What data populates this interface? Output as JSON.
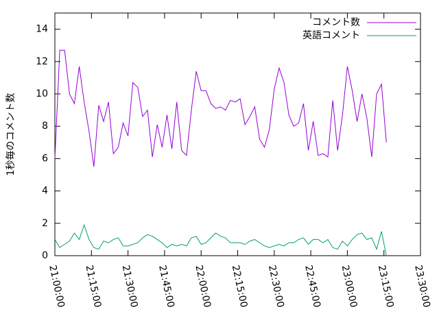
{
  "chart_data": {
    "type": "line",
    "ylabel": "1秒毎のコメント数",
    "x": [
      "21:00:00",
      "21:02:00",
      "21:04:00",
      "21:06:00",
      "21:08:00",
      "21:10:00",
      "21:12:00",
      "21:14:00",
      "21:16:00",
      "21:18:00",
      "21:20:00",
      "21:22:00",
      "21:24:00",
      "21:26:00",
      "21:28:00",
      "21:30:00",
      "21:32:00",
      "21:34:00",
      "21:36:00",
      "21:38:00",
      "21:40:00",
      "21:42:00",
      "21:44:00",
      "21:46:00",
      "21:48:00",
      "21:50:00",
      "21:52:00",
      "21:54:00",
      "21:56:00",
      "21:58:00",
      "22:00:00",
      "22:02:00",
      "22:04:00",
      "22:06:00",
      "22:08:00",
      "22:10:00",
      "22:12:00",
      "22:14:00",
      "22:16:00",
      "22:18:00",
      "22:20:00",
      "22:22:00",
      "22:24:00",
      "22:26:00",
      "22:28:00",
      "22:30:00",
      "22:32:00",
      "22:34:00",
      "22:36:00",
      "22:38:00",
      "22:40:00",
      "22:42:00",
      "22:44:00",
      "22:46:00",
      "22:48:00",
      "22:50:00",
      "22:52:00",
      "22:54:00",
      "22:56:00",
      "22:58:00",
      "23:00:00",
      "23:02:00",
      "23:04:00",
      "23:06:00",
      "23:08:00",
      "23:10:00",
      "23:12:00",
      "23:14:00",
      "23:16:00"
    ],
    "series": [
      {
        "name": "コメント数",
        "color": "#9400d3",
        "values": [
          6.0,
          12.7,
          12.7,
          10.0,
          9.4,
          11.7,
          9.5,
          7.7,
          5.5,
          9.3,
          8.3,
          9.5,
          6.3,
          6.7,
          8.2,
          7.4,
          10.7,
          10.4,
          8.6,
          9.0,
          6.1,
          8.1,
          6.7,
          8.7,
          6.6,
          9.5,
          6.5,
          6.2,
          9.0,
          11.4,
          10.2,
          10.2,
          9.4,
          9.1,
          9.2,
          9.0,
          9.6,
          9.5,
          9.7,
          8.1,
          8.6,
          9.2,
          7.2,
          6.7,
          7.8,
          10.3,
          11.6,
          10.7,
          8.7,
          8.0,
          8.2,
          9.4,
          6.5,
          8.3,
          6.2,
          6.3,
          6.1,
          9.6,
          6.5,
          8.7,
          11.7,
          10.2,
          8.3,
          10.0,
          8.5,
          6.1,
          10.0,
          10.6,
          7.0
        ]
      },
      {
        "name": "英語コメント",
        "color": "#009e73",
        "values": [
          1.0,
          0.5,
          0.7,
          0.9,
          1.4,
          1.0,
          1.9,
          1.0,
          0.5,
          0.4,
          0.9,
          0.8,
          1.0,
          1.1,
          0.6,
          0.6,
          0.7,
          0.8,
          1.1,
          1.3,
          1.2,
          1.0,
          0.8,
          0.5,
          0.7,
          0.6,
          0.7,
          0.6,
          1.1,
          1.2,
          0.7,
          0.8,
          1.1,
          1.4,
          1.2,
          1.1,
          0.8,
          0.8,
          0.8,
          0.7,
          0.9,
          1.0,
          0.8,
          0.6,
          0.5,
          0.6,
          0.7,
          0.6,
          0.8,
          0.8,
          1.0,
          1.1,
          0.7,
          1.0,
          1.0,
          0.8,
          1.0,
          0.5,
          0.4,
          0.9,
          0.6,
          1.0,
          1.3,
          1.4,
          1.0,
          1.1,
          0.4,
          1.5,
          0.0
        ]
      }
    ],
    "xlim": [
      "21:00:00",
      "23:30:00"
    ],
    "xticks": [
      "21:00:00",
      "21:15:00",
      "21:30:00",
      "21:45:00",
      "22:00:00",
      "22:15:00",
      "22:30:00",
      "22:45:00",
      "23:00:00",
      "23:15:00",
      "23:30:00"
    ],
    "ylim": [
      0,
      15
    ],
    "yticks": [
      0,
      2,
      4,
      6,
      8,
      10,
      12,
      14
    ],
    "legend": "top right"
  }
}
